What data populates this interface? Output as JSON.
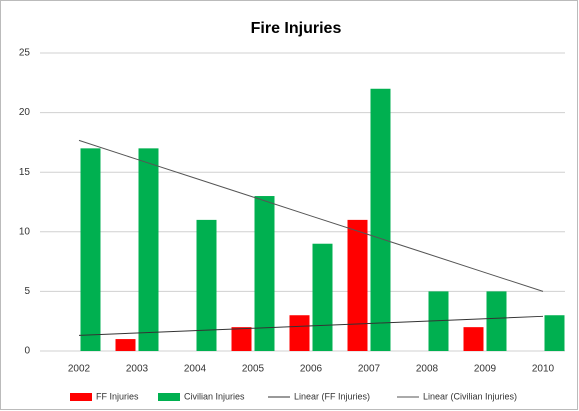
{
  "chart_data": {
    "type": "bar",
    "title": "Fire Injuries",
    "categories": [
      "2002",
      "2003",
      "2004",
      "2005",
      "2006",
      "2007",
      "2008",
      "2009",
      "2010"
    ],
    "series": [
      {
        "name": "FF Injuries",
        "color": "#ff0000",
        "values": [
          0,
          1,
          0,
          2,
          3,
          11,
          0,
          2,
          0
        ]
      },
      {
        "name": "Civilian Injuries",
        "color": "#00b050",
        "values": [
          17,
          17,
          11,
          13,
          9,
          22,
          5,
          5,
          3
        ]
      },
      {
        "name": "Linear (FF Injuries)",
        "type": "line",
        "color": "#333333",
        "values": [
          1.31,
          1.51,
          1.71,
          1.91,
          2.11,
          2.31,
          2.51,
          2.71,
          2.91
        ]
      },
      {
        "name": "Linear (Civilian Injuries)",
        "type": "line",
        "color": "#555555",
        "values": [
          17.67,
          16.08,
          14.5,
          12.92,
          11.33,
          9.75,
          8.17,
          6.58,
          5.0
        ]
      }
    ],
    "ylim": [
      0,
      25
    ],
    "yticks": [
      0,
      5,
      10,
      15,
      20,
      25
    ],
    "grid": true
  }
}
